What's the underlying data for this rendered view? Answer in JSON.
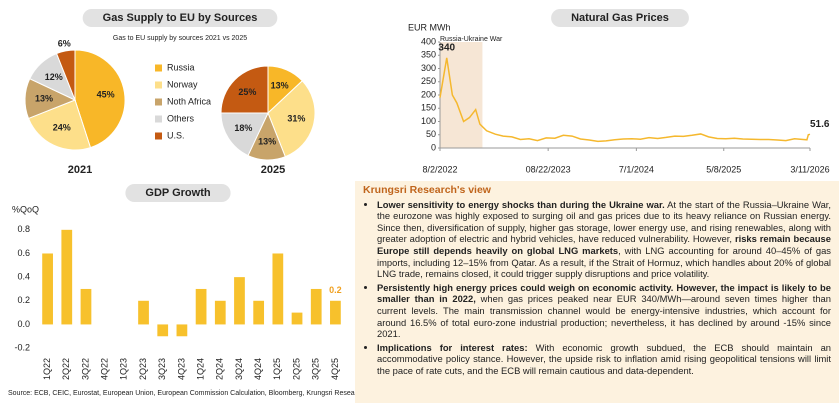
{
  "chart_data": [
    {
      "type": "pie",
      "title": "Gas Supply to EU by Sources",
      "subtitle": "Gas to EU supply by sources 2021 vs 2025",
      "categories": [
        "Russia",
        "Norway",
        "Noth Africa",
        "Others",
        "U.S."
      ],
      "colors": [
        "#f8b728",
        "#fddf8a",
        "#c8a46a",
        "#d9d9d9",
        "#c45a12"
      ],
      "series": [
        {
          "name": "2021",
          "values": [
            45,
            24,
            13,
            12,
            6
          ],
          "value_labels": [
            "45%",
            "24%",
            "13%",
            "12%",
            "6%"
          ]
        },
        {
          "name": "2025",
          "values": [
            13,
            31,
            13,
            18,
            25
          ],
          "value_labels": [
            "13%",
            "31%",
            "13%",
            "18%",
            "25%"
          ]
        }
      ]
    },
    {
      "type": "line",
      "title": "Natural Gas Prices",
      "y_label": "EUR MWh",
      "color": "#f5b82e",
      "shaded_region": {
        "label": "Russia-Ukraine War",
        "x": [
          "2022-08-02",
          "2022-12-31"
        ]
      },
      "x": [
        "2022-08-02",
        "2022-08-26",
        "2022-09-15",
        "2022-10-01",
        "2022-10-25",
        "2022-11-15",
        "2022-12-07",
        "2022-12-22",
        "2023-01-15",
        "2023-02-15",
        "2023-03-15",
        "2023-04-15",
        "2023-05-15",
        "2023-06-15",
        "2023-07-15",
        "2023-08-15",
        "2023-09-15",
        "2023-10-15",
        "2023-11-15",
        "2023-12-15",
        "2024-01-15",
        "2024-02-15",
        "2024-03-15",
        "2024-04-15",
        "2024-05-15",
        "2024-06-15",
        "2024-07-15",
        "2024-08-15",
        "2024-09-15",
        "2024-10-15",
        "2024-11-15",
        "2024-12-15",
        "2025-01-15",
        "2025-02-15",
        "2025-03-15",
        "2025-04-15",
        "2025-05-15",
        "2025-06-15",
        "2025-07-15",
        "2025-08-15",
        "2025-09-15",
        "2025-10-15",
        "2025-11-15",
        "2025-12-15",
        "2026-01-15",
        "2026-02-15",
        "2026-02-28",
        "2026-03-05",
        "2026-03-11"
      ],
      "values": [
        190,
        340,
        200,
        170,
        100,
        115,
        145,
        90,
        65,
        52,
        45,
        42,
        32,
        35,
        28,
        38,
        37,
        48,
        45,
        34,
        30,
        25,
        27,
        31,
        34,
        35,
        33,
        39,
        36,
        40,
        45,
        44,
        48,
        53,
        42,
        36,
        35,
        37,
        34,
        33,
        32,
        32,
        30,
        28,
        35,
        32,
        31,
        50,
        51.6
      ],
      "value_labels": [
        null,
        "340",
        null,
        null,
        null,
        null,
        null,
        null,
        null,
        null,
        null,
        null,
        null,
        null,
        null,
        null,
        null,
        null,
        null,
        null,
        null,
        null,
        null,
        null,
        null,
        null,
        null,
        null,
        null,
        null,
        null,
        null,
        null,
        null,
        null,
        null,
        null,
        null,
        null,
        null,
        null,
        null,
        null,
        null,
        null,
        null,
        null,
        null,
        "51.6"
      ],
      "xlim": [
        "2022-08-02",
        "2026-03-11"
      ],
      "xticks": [
        {
          "value": "2022-08-02",
          "label": "8/2/2022"
        },
        {
          "value": "2023-08-22",
          "label": "08/22/2023"
        },
        {
          "value": "2024-07-01",
          "label": "7/1/2024"
        },
        {
          "value": "2025-05-08",
          "label": "5/8/2025"
        },
        {
          "value": "2026-03-11",
          "label": "3/11/2026"
        }
      ],
      "ylim": [
        0,
        400
      ],
      "yticks": [
        0,
        50,
        100,
        150,
        200,
        250,
        300,
        350,
        400
      ]
    },
    {
      "type": "bar",
      "title": "GDP Growth",
      "y_label": "%QoQ",
      "color": "#f7c12c",
      "label_color": "#f0a020",
      "categories": [
        "1Q22",
        "2Q22",
        "3Q22",
        "4Q22",
        "1Q23",
        "2Q23",
        "3Q23",
        "4Q23",
        "1Q24",
        "2Q24",
        "3Q24",
        "4Q24",
        "1Q25",
        "2Q25",
        "3Q25",
        "4Q25"
      ],
      "values": [
        0.6,
        0.8,
        0.3,
        0,
        0,
        0.2,
        -0.1,
        -0.1,
        0.3,
        0.2,
        0.4,
        0.2,
        0.6,
        0.1,
        0.3,
        0.2
      ],
      "value_labels": [
        null,
        null,
        null,
        null,
        null,
        null,
        null,
        null,
        null,
        null,
        null,
        null,
        null,
        null,
        null,
        "0.2"
      ],
      "ylim": [
        -0.25,
        0.9
      ],
      "yticks": [
        -0.2,
        {
          "value": 0,
          "label": "0.0"
        },
        0.2,
        0.4,
        0.6,
        0.8
      ]
    }
  ],
  "commentary": {
    "title": "Krungsri Research's view",
    "bullets": [
      [
        {
          "text": "Lower sensitivity to energy shocks than during the Ukraine war.",
          "bold": true
        },
        {
          "text": " At the start of the Russia–Ukraine War, the eurozone was highly exposed to surging oil and gas prices due to its heavy reliance on Russian energy. Since then, diversification of supply, higher gas storage, lower energy use, and rising renewables, along with greater adoption of electric and hybrid vehicles, have reduced vulnerability. However, "
        },
        {
          "text": "risks remain because Europe still depends heavily on global LNG markets",
          "bold": true
        },
        {
          "text": ", with LNG accounting for around 40–45% of gas imports, including 12–15% from Qatar. As a result, if the Strait of Hormuz, which handles about 20% of global LNG trade, remains closed, it could trigger supply disruptions and price volatility."
        }
      ],
      [
        {
          "text": "Persistently high energy prices could weigh on economic activity. However, the impact is likely to be smaller than in 2022,",
          "bold": true
        },
        {
          "text": " when gas prices peaked near EUR 340/MWh—around seven times higher than current levels. The main transmission channel would be energy-intensive industries, which account for around 16.5% of total euro-zone industrial production; nevertheless, it has declined by around -15% since 2021."
        }
      ],
      [
        {
          "text": "Implications for interest rates:",
          "bold": true
        },
        {
          "text": " With economic growth subdued, the ECB should maintain an accommodative policy stance. However, the upside risk to inflation amid rising geopolitical tensions will limit the pace of rate cuts, and the ECB will remain cautious and data-dependent."
        }
      ]
    ]
  },
  "source": "Source: ECB, CEIC, Eurostat, European Union, European Commission Calculation, Bloomberg, Krungsri Research"
}
